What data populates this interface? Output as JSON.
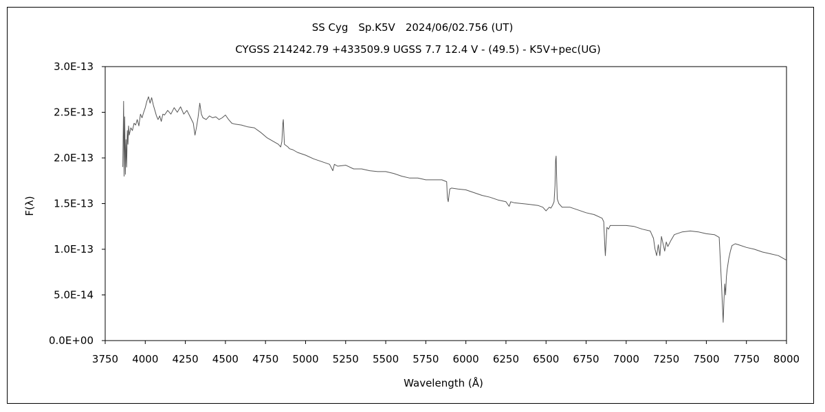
{
  "chart_data": {
    "type": "line",
    "title": "SS Cyg　Sp.K5V　2024/06/02.756 (UT)",
    "subtitle": "CYGSS 214242.79 +433509.9 UGSS 7.7 12.4 V - (49.5) - K5V+pec(UG)",
    "xlabel": "Wavelength (Å)",
    "ylabel": "F(λ)",
    "xlim": [
      3750,
      8000
    ],
    "ylim": [
      0,
      3e-13
    ],
    "grid": false,
    "x_tick_labels": [
      "3750",
      "4000",
      "4250",
      "4500",
      "4750",
      "5000",
      "5250",
      "5500",
      "5750",
      "6000",
      "6250",
      "6500",
      "6750",
      "7000",
      "7250",
      "7500",
      "7750",
      "8000"
    ],
    "y_tick_labels": [
      "0.0E+00",
      "5.0E-14",
      "1.0E-13",
      "1.5E-13",
      "2.0E-13",
      "2.5E-13",
      "3.0E-13"
    ],
    "series": [
      {
        "color": "#555555",
        "x": [
          3860,
          3865,
          3868,
          3872,
          3876,
          3880,
          3884,
          3888,
          3892,
          3896,
          3900,
          3910,
          3920,
          3930,
          3940,
          3950,
          3960,
          3970,
          3980,
          3990,
          4000,
          4010,
          4020,
          4030,
          4040,
          4050,
          4060,
          4070,
          4080,
          4090,
          4100,
          4110,
          4120,
          4140,
          4160,
          4180,
          4200,
          4220,
          4240,
          4260,
          4280,
          4300,
          4310,
          4320,
          4330,
          4340,
          4350,
          4360,
          4380,
          4400,
          4420,
          4440,
          4460,
          4480,
          4500,
          4520,
          4540,
          4560,
          4600,
          4640,
          4680,
          4720,
          4760,
          4800,
          4830,
          4845,
          4852,
          4858,
          4861,
          4864,
          4868,
          4875,
          4890,
          4900,
          4920,
          4950,
          5000,
          5050,
          5100,
          5150,
          5170,
          5180,
          5200,
          5250,
          5300,
          5350,
          5400,
          5450,
          5500,
          5550,
          5600,
          5650,
          5700,
          5750,
          5800,
          5850,
          5880,
          5885,
          5890,
          5895,
          5900,
          5910,
          5950,
          6000,
          6050,
          6100,
          6150,
          6200,
          6250,
          6270,
          6280,
          6300,
          6350,
          6400,
          6450,
          6480,
          6500,
          6520,
          6530,
          6540,
          6550,
          6556,
          6560,
          6563,
          6566,
          6570,
          6580,
          6600,
          6650,
          6700,
          6750,
          6800,
          6850,
          6860,
          6866,
          6870,
          6875,
          6880,
          6890,
          6900,
          6950,
          7000,
          7050,
          7100,
          7150,
          7170,
          7180,
          7190,
          7200,
          7210,
          7220,
          7240,
          7250,
          7260,
          7280,
          7300,
          7350,
          7400,
          7450,
          7500,
          7550,
          7580,
          7595,
          7600,
          7605,
          7610,
          7615,
          7620,
          7625,
          7630,
          7640,
          7650,
          7660,
          7680,
          7700,
          7750,
          7800,
          7850,
          7900,
          7950,
          8000
        ],
        "values": [
          1.9e-13,
          2.62e-13,
          1.8e-13,
          2.45e-13,
          1.82e-13,
          2.2e-13,
          1.9e-13,
          2.3e-13,
          2.15e-13,
          2.35e-13,
          2.25e-13,
          2.33e-13,
          2.3e-13,
          2.38e-13,
          2.36e-13,
          2.42e-13,
          2.35e-13,
          2.48e-13,
          2.44e-13,
          2.5e-13,
          2.55e-13,
          2.62e-13,
          2.67e-13,
          2.6e-13,
          2.66e-13,
          2.58e-13,
          2.52e-13,
          2.46e-13,
          2.42e-13,
          2.46e-13,
          2.4e-13,
          2.48e-13,
          2.47e-13,
          2.52e-13,
          2.48e-13,
          2.55e-13,
          2.5e-13,
          2.56e-13,
          2.48e-13,
          2.52e-13,
          2.45e-13,
          2.38e-13,
          2.25e-13,
          2.34e-13,
          2.45e-13,
          2.6e-13,
          2.48e-13,
          2.44e-13,
          2.42e-13,
          2.46e-13,
          2.44e-13,
          2.45e-13,
          2.42e-13,
          2.44e-13,
          2.47e-13,
          2.42e-13,
          2.38e-13,
          2.37e-13,
          2.36e-13,
          2.34e-13,
          2.33e-13,
          2.28e-13,
          2.22e-13,
          2.18e-13,
          2.15e-13,
          2.12e-13,
          2.18e-13,
          2.38e-13,
          2.42e-13,
          2.3e-13,
          2.15e-13,
          2.14e-13,
          2.12e-13,
          2.1e-13,
          2.09e-13,
          2.06e-13,
          2.03e-13,
          1.99e-13,
          1.96e-13,
          1.93e-13,
          1.86e-13,
          1.93e-13,
          1.91e-13,
          1.92e-13,
          1.88e-13,
          1.88e-13,
          1.86e-13,
          1.85e-13,
          1.85e-13,
          1.83e-13,
          1.8e-13,
          1.78e-13,
          1.78e-13,
          1.76e-13,
          1.76e-13,
          1.76e-13,
          1.74e-13,
          1.56e-13,
          1.52e-13,
          1.6e-13,
          1.66e-13,
          1.67e-13,
          1.66e-13,
          1.65e-13,
          1.62e-13,
          1.59e-13,
          1.57e-13,
          1.54e-13,
          1.52e-13,
          1.47e-13,
          1.52e-13,
          1.51e-13,
          1.5e-13,
          1.49e-13,
          1.48e-13,
          1.46e-13,
          1.42e-13,
          1.46e-13,
          1.45e-13,
          1.48e-13,
          1.52e-13,
          1.7e-13,
          1.98e-13,
          2.02e-13,
          1.8e-13,
          1.55e-13,
          1.5e-13,
          1.46e-13,
          1.46e-13,
          1.43e-13,
          1.4e-13,
          1.38e-13,
          1.34e-13,
          1.3e-13,
          1.05e-13,
          9.3e-14,
          1.1e-13,
          1.24e-13,
          1.22e-13,
          1.26e-13,
          1.26e-13,
          1.26e-13,
          1.25e-13,
          1.22e-13,
          1.2e-13,
          1.12e-13,
          1e-13,
          9.3e-14,
          1.05e-13,
          9.3e-14,
          1.14e-13,
          9.8e-14,
          1.08e-13,
          1.03e-13,
          1.1e-13,
          1.16e-13,
          1.19e-13,
          1.2e-13,
          1.19e-13,
          1.17e-13,
          1.16e-13,
          1.13e-13,
          6e-14,
          4e-14,
          2e-14,
          4.5e-14,
          6.2e-14,
          5e-14,
          7e-14,
          7.8e-14,
          9e-14,
          9.8e-14,
          1.04e-13,
          1.06e-13,
          1.05e-13,
          1.02e-13,
          1e-13,
          9.7e-14,
          9.5e-14,
          9.3e-14,
          8.8e-14
        ]
      }
    ]
  }
}
